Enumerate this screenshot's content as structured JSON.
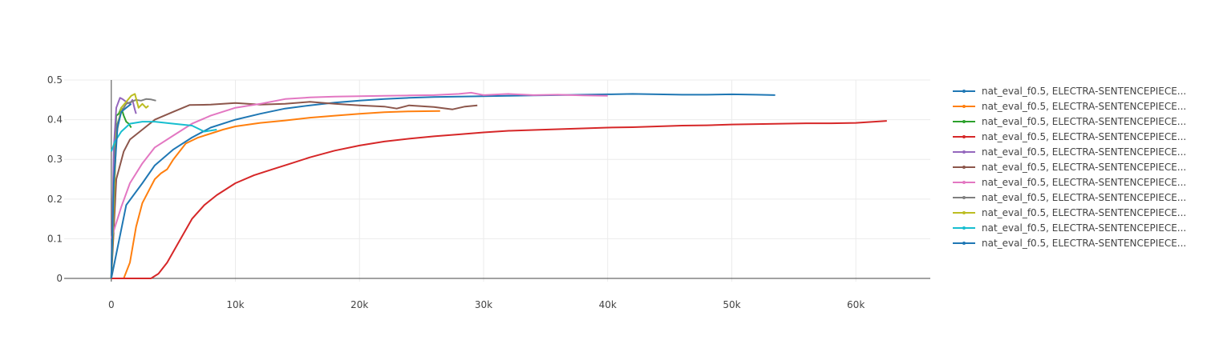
{
  "chart_data": {
    "type": "line",
    "xlim": [
      -3800,
      66000
    ],
    "ylim": [
      -0.008,
      0.5
    ],
    "x_ticks": [
      0,
      10000,
      20000,
      30000,
      40000,
      50000,
      60000
    ],
    "x_tick_labels": [
      "0",
      "10k",
      "20k",
      "30k",
      "40k",
      "50k",
      "60k"
    ],
    "y_ticks": [
      0,
      0.1,
      0.2,
      0.3,
      0.4,
      0.5
    ],
    "y_tick_labels": [
      "0",
      "0.1",
      "0.2",
      "0.3",
      "0.4",
      "0.5"
    ],
    "grid": true,
    "legend_position": "right",
    "series": [
      {
        "name": "nat_eval_f0.5, ELECTRA-SENTENCEPIECE...",
        "color": "#1f77b4",
        "x": [
          0,
          1200,
          2500,
          3500,
          5000,
          6500,
          8000,
          10000,
          12000,
          14000,
          16000,
          18000,
          20000,
          22000,
          24000,
          26000,
          28000,
          30000,
          32000,
          34000,
          36000,
          38000,
          40000,
          42000,
          44000,
          46000,
          48000,
          50000,
          52000,
          53500
        ],
        "y": [
          0,
          0.185,
          0.24,
          0.285,
          0.325,
          0.355,
          0.38,
          0.4,
          0.415,
          0.428,
          0.436,
          0.443,
          0.448,
          0.452,
          0.455,
          0.457,
          0.458,
          0.459,
          0.46,
          0.461,
          0.462,
          0.463,
          0.464,
          0.465,
          0.464,
          0.463,
          0.463,
          0.464,
          0.463,
          0.462
        ]
      },
      {
        "name": "nat_eval_f0.5, ELECTRA-SENTENCEPIECE...",
        "color": "#ff7f0e",
        "x": [
          0,
          1000,
          1500,
          2000,
          2500,
          3000,
          3500,
          4000,
          4500,
          5000,
          6000,
          7000,
          8000,
          9000,
          10000,
          12000,
          14000,
          16000,
          18000,
          20000,
          22000,
          24000,
          26500
        ],
        "y": [
          0,
          0,
          0.04,
          0.13,
          0.19,
          0.22,
          0.25,
          0.265,
          0.275,
          0.3,
          0.34,
          0.355,
          0.365,
          0.375,
          0.383,
          0.392,
          0.398,
          0.405,
          0.41,
          0.415,
          0.419,
          0.421,
          0.422
        ]
      },
      {
        "name": "nat_eval_f0.5, ELECTRA-SENTENCEPIECE...",
        "color": "#2ca02c",
        "x": [
          0,
          200,
          400,
          600,
          800,
          1000,
          1200,
          1400,
          1600
        ],
        "y": [
          0,
          0.3,
          0.41,
          0.415,
          0.43,
          0.41,
          0.395,
          0.39,
          0.38
        ]
      },
      {
        "name": "nat_eval_f0.5, ELECTRA-SENTENCEPIECE...",
        "color": "#d62728",
        "x": [
          0,
          2500,
          3200,
          3800,
          4500,
          5500,
          6500,
          7500,
          8500,
          10000,
          11500,
          13000,
          14500,
          16000,
          18000,
          20000,
          22000,
          24000,
          26000,
          28000,
          30000,
          32000,
          34000,
          36000,
          38000,
          40000,
          42000,
          44000,
          46000,
          48000,
          50000,
          52000,
          54000,
          56000,
          58000,
          60000,
          62500
        ],
        "y": [
          0,
          0,
          0,
          0.012,
          0.04,
          0.095,
          0.15,
          0.185,
          0.21,
          0.24,
          0.26,
          0.275,
          0.29,
          0.305,
          0.322,
          0.335,
          0.345,
          0.352,
          0.358,
          0.363,
          0.368,
          0.372,
          0.374,
          0.376,
          0.378,
          0.38,
          0.381,
          0.383,
          0.385,
          0.386,
          0.388,
          0.389,
          0.39,
          0.391,
          0.391,
          0.392,
          0.397
        ]
      },
      {
        "name": "nat_eval_f0.5, ELECTRA-SENTENCEPIECE...",
        "color": "#9467bd",
        "x": [
          0,
          200,
          400,
          700,
          900,
          1200,
          1500,
          1700,
          1900,
          2000
        ],
        "y": [
          0,
          0.33,
          0.43,
          0.455,
          0.452,
          0.445,
          0.44,
          0.45,
          0.425,
          0.415
        ]
      },
      {
        "name": "nat_eval_f0.5, ELECTRA-SENTENCEPIECE...",
        "color": "#8c564b",
        "x": [
          0,
          400,
          1000,
          1500,
          2500,
          3500,
          5000,
          6300,
          8000,
          10000,
          12000,
          14000,
          16000,
          18000,
          20000,
          22000,
          23000,
          24000,
          26000,
          27500,
          28500,
          29500
        ],
        "y": [
          0,
          0.25,
          0.32,
          0.35,
          0.375,
          0.4,
          0.42,
          0.437,
          0.438,
          0.442,
          0.438,
          0.44,
          0.445,
          0.44,
          0.436,
          0.433,
          0.428,
          0.436,
          0.432,
          0.426,
          0.433,
          0.436
        ]
      },
      {
        "name": "nat_eval_f0.5, ELECTRA-SENTENCEPIECE...",
        "color": "#e377c2",
        "x": [
          0,
          800,
          1500,
          2500,
          3500,
          5000,
          6500,
          8000,
          10000,
          12000,
          14000,
          16000,
          18000,
          20000,
          22000,
          24000,
          26000,
          28000,
          29000,
          30000,
          32000,
          34000,
          36000,
          38000,
          40000
        ],
        "y": [
          0.1,
          0.18,
          0.24,
          0.29,
          0.33,
          0.36,
          0.39,
          0.41,
          0.43,
          0.44,
          0.452,
          0.456,
          0.458,
          0.459,
          0.46,
          0.461,
          0.462,
          0.465,
          0.468,
          0.462,
          0.465,
          0.462,
          0.463,
          0.461,
          0.46
        ]
      },
      {
        "name": "nat_eval_f0.5, ELECTRA-SENTENCEPIECE...",
        "color": "#7f7f7f",
        "x": [
          0,
          400,
          800,
          1200,
          1600,
          2000,
          2400,
          2800,
          3200,
          3600
        ],
        "y": [
          0,
          0.38,
          0.42,
          0.44,
          0.445,
          0.45,
          0.448,
          0.452,
          0.451,
          0.448
        ]
      },
      {
        "name": "nat_eval_f0.5, ELECTRA-SENTENCEPIECE...",
        "color": "#bcbd22",
        "x": [
          0,
          400,
          800,
          1200,
          1600,
          1900,
          2200,
          2500,
          2800,
          3000
        ],
        "y": [
          0,
          0.36,
          0.43,
          0.445,
          0.46,
          0.465,
          0.43,
          0.44,
          0.43,
          0.435
        ]
      },
      {
        "name": "nat_eval_f0.5, ELECTRA-SENTENCEPIECE...",
        "color": "#17becf",
        "x": [
          0,
          300,
          800,
          1500,
          2500,
          3500,
          5000,
          6500,
          7500,
          8500
        ],
        "y": [
          0.32,
          0.345,
          0.37,
          0.39,
          0.395,
          0.395,
          0.39,
          0.385,
          0.37,
          0.375
        ]
      },
      {
        "name": "nat_eval_f0.5, ELECTRA-SENTENCEPIECE...",
        "color": "#1f77b4",
        "x": [
          0,
          200,
          500,
          800,
          1200,
          1600
        ],
        "y": [
          0,
          0.24,
          0.38,
          0.42,
          0.43,
          0.44
        ]
      }
    ]
  }
}
